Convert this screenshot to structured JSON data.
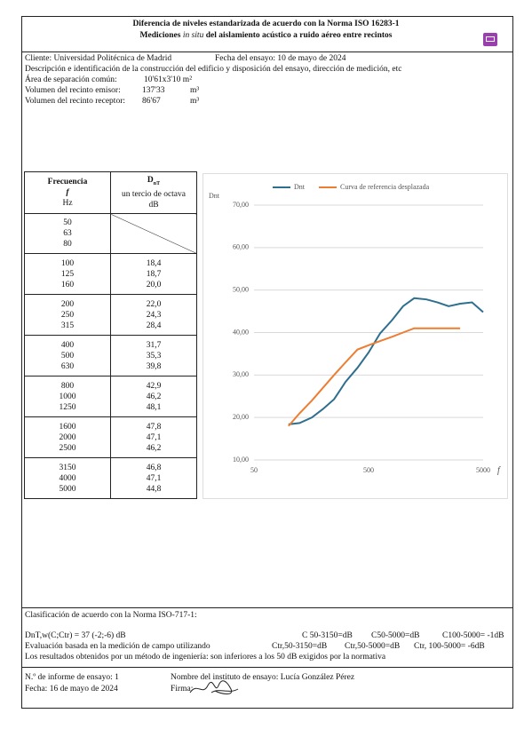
{
  "header": {
    "title": "Diferencia de niveles estandarizada de acuerdo con la Norma ISO 16283-1",
    "subtitle_a": "Mediciones",
    "subtitle_b": "in situ",
    "subtitle_c": "del aislamiento acústico a ruido aéreo entre recintos"
  },
  "info": {
    "client": "Cliente: Universidad Politécnica de Madrid",
    "test_date": "Fecha del ensayo: 10 de mayo de 2024",
    "description": "Descripción e identificación de la construcción del edificio y disposición del ensayo, dirección de medición, etc",
    "area_label": "Área de separación común:",
    "area_value": "10'61x3'10 m²",
    "emitter_label": "Volumen del recinto emisor:",
    "emitter_value": "137'33",
    "emitter_unit": "m³",
    "receiver_label": "Volumen del recinto receptor:",
    "receiver_value": "86'67",
    "receiver_unit": "m³"
  },
  "table": {
    "head": {
      "freq": "Frecuencia",
      "f": "f",
      "hz": "Hz",
      "d": "D",
      "d_sub": "nT",
      "d_desc": "un tercio de octava",
      "db": "dB"
    },
    "groups": [
      {
        "freq": [
          "50",
          "63",
          "80"
        ],
        "dnt": []
      },
      {
        "freq": [
          "100",
          "125",
          "160"
        ],
        "dnt": [
          "18,4",
          "18,7",
          "20,0"
        ]
      },
      {
        "freq": [
          "200",
          "250",
          "315"
        ],
        "dnt": [
          "22,0",
          "24,3",
          "28,4"
        ]
      },
      {
        "freq": [
          "400",
          "500",
          "630"
        ],
        "dnt": [
          "31,7",
          "35,3",
          "39,8"
        ]
      },
      {
        "freq": [
          "800",
          "1000",
          "1250"
        ],
        "dnt": [
          "42,9",
          "46,2",
          "48,1"
        ]
      },
      {
        "freq": [
          "1600",
          "2000",
          "2500"
        ],
        "dnt": [
          "47,8",
          "47,1",
          "46,2"
        ]
      },
      {
        "freq": [
          "3150",
          "4000",
          "5000"
        ],
        "dnt": [
          "46,8",
          "47,1",
          "44,8"
        ]
      }
    ]
  },
  "chart_data": {
    "type": "line",
    "y_label": "Dnt",
    "x_label": "f",
    "log_x": true,
    "xlim": [
      50,
      5000
    ],
    "xticks": [
      50,
      500,
      5000
    ],
    "ylim": [
      10,
      70
    ],
    "yticks": [
      {
        "value": 10,
        "label": "10,00"
      },
      {
        "value": 20,
        "label": "20,00"
      },
      {
        "value": 30,
        "label": "30,00"
      },
      {
        "value": 40,
        "label": "40,00"
      },
      {
        "value": 50,
        "label": "50,00"
      },
      {
        "value": 60,
        "label": "60,00"
      },
      {
        "value": 70,
        "label": "70,00"
      }
    ],
    "grid": true,
    "series": [
      {
        "name": "Dnt",
        "color": "#2e6f8e",
        "x": [
          100,
          125,
          160,
          200,
          250,
          315,
          400,
          500,
          630,
          800,
          1000,
          1250,
          1600,
          2000,
          2500,
          3150,
          4000,
          5000
        ],
        "values": [
          18.4,
          18.7,
          20.0,
          22.0,
          24.3,
          28.4,
          31.7,
          35.3,
          39.8,
          42.9,
          46.2,
          48.1,
          47.8,
          47.1,
          46.2,
          46.8,
          47.1,
          44.8
        ]
      },
      {
        "name": "Curva de referencia desplazada",
        "color": "#ed7d31",
        "x": [
          100,
          125,
          160,
          200,
          250,
          315,
          400,
          500,
          630,
          800,
          1000,
          1250,
          1600,
          2000,
          2500,
          3150
        ],
        "values": [
          18,
          21,
          24,
          27,
          30,
          33,
          36,
          37,
          38,
          39,
          40,
          41,
          41,
          41,
          41,
          41
        ]
      }
    ]
  },
  "classification": {
    "title": "Clasificación de acuerdo con la Norma ISO-717-1:",
    "result": "DnT,w(C;Ctr) = 37 (-2;-6) dB",
    "c1": "C 50-3150=dB",
    "c2": "C50-5000=dB",
    "c3": "C100-5000= -1dB",
    "evaluation": "Evaluación basada en la medición de campo utilizando",
    "ctr1": "Ctr,50-3150=dB",
    "ctr2": "Ctr,50-5000=dB",
    "ctr3": "Ctr, 100-5000= -6dB",
    "conclusion": "Los resultados obtenidos por un método de ingeniería: son inferiores a los 50 dB exigidos por la normativa"
  },
  "footer": {
    "report": "N.º de informe de ensayo: 1",
    "institute": "Nombre del instituto de ensayo: Lucía González Pérez",
    "date": "Fecha: 16 de mayo de 2024",
    "signature": "Firma:"
  }
}
